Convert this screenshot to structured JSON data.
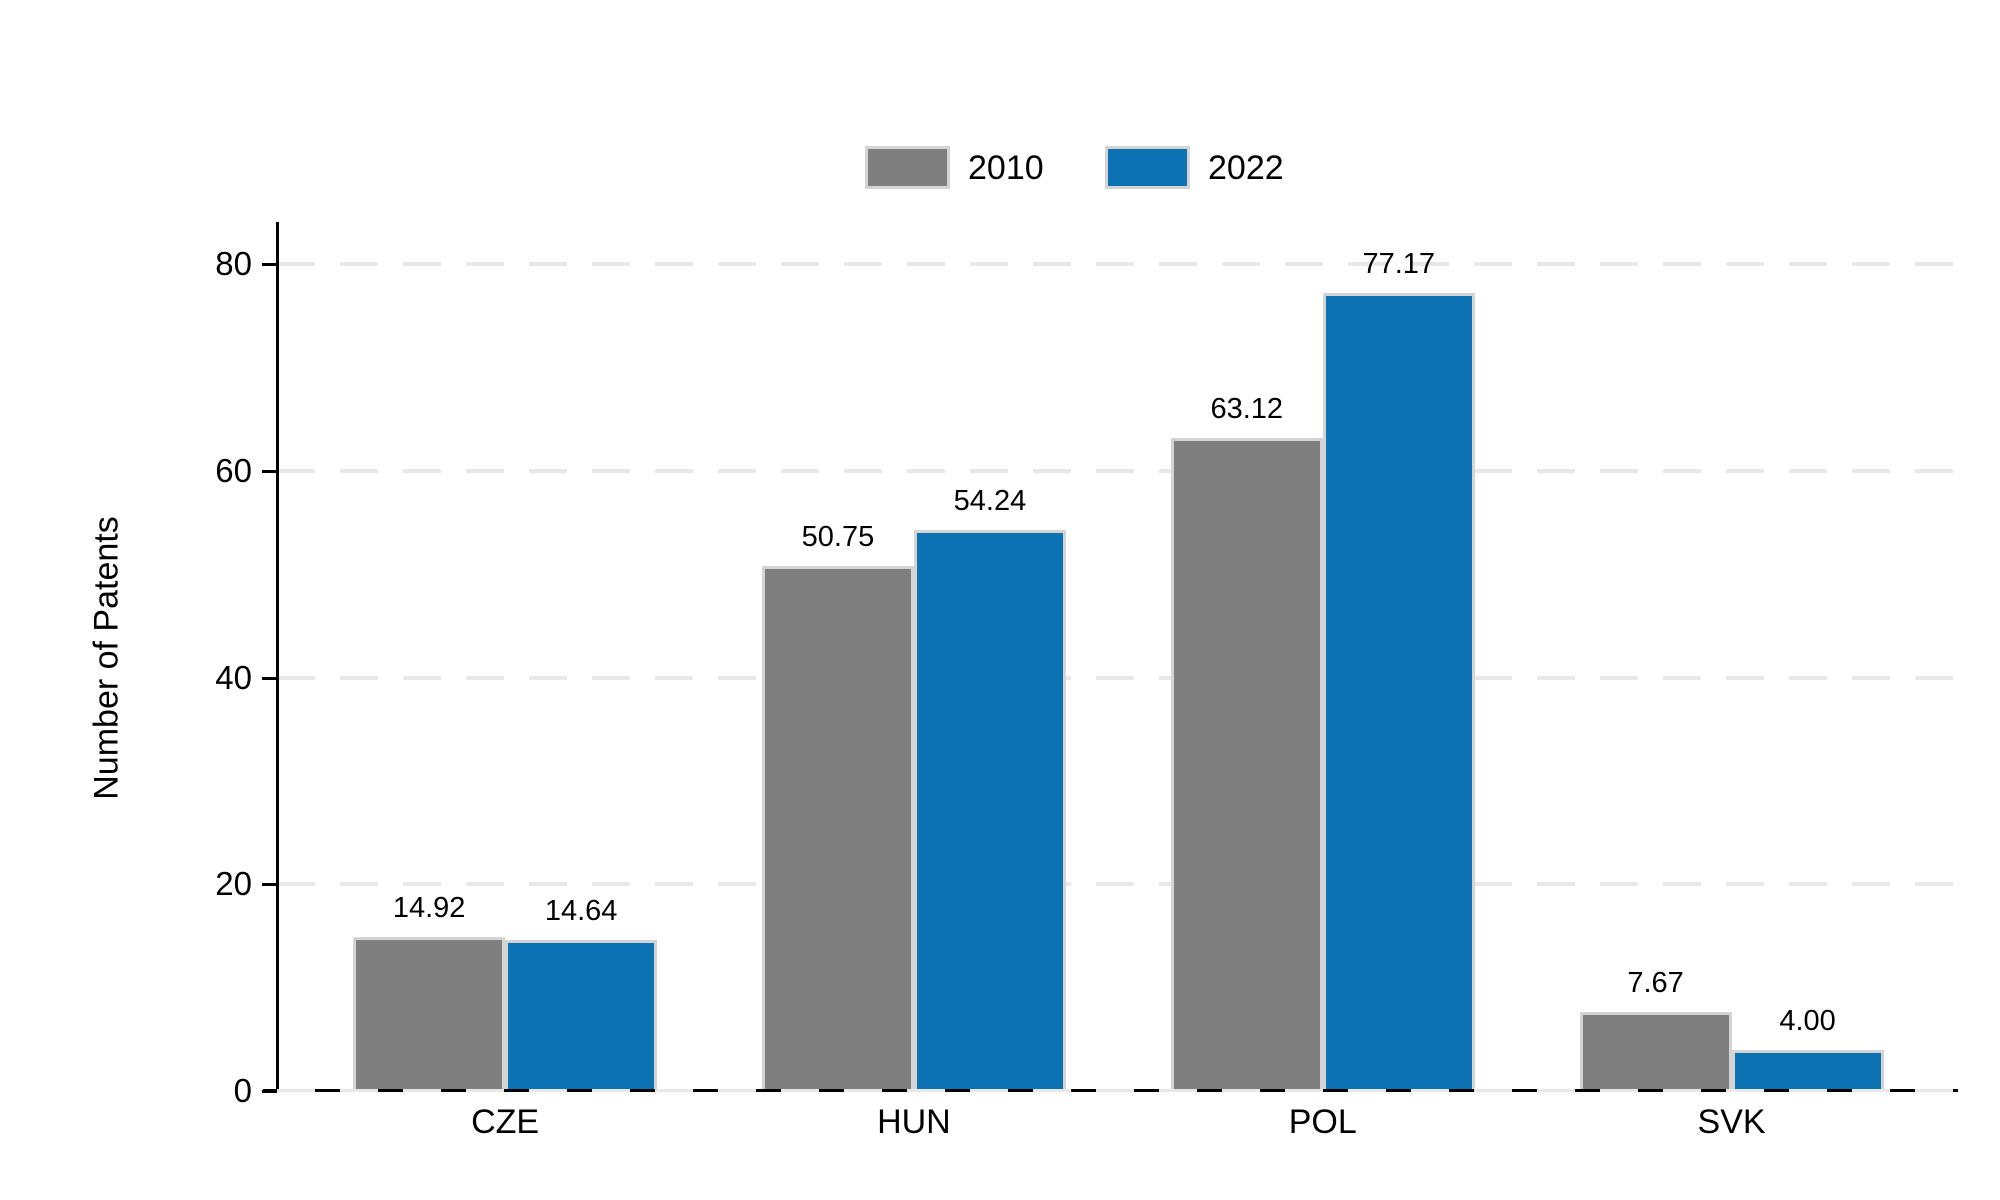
{
  "chart_data": {
    "type": "bar",
    "title": "",
    "ylabel": "Number of Patents",
    "xlabel": "",
    "categories": [
      "CZE",
      "HUN",
      "POL",
      "SVK"
    ],
    "series": [
      {
        "name": "2010",
        "color": "#7f7f7f",
        "values": [
          14.92,
          50.75,
          63.12,
          7.67
        ]
      },
      {
        "name": "2022",
        "color": "#0d72b2",
        "values": [
          14.64,
          54.24,
          77.17,
          4.0
        ]
      }
    ],
    "value_labels": [
      [
        "14.92",
        "14.64"
      ],
      [
        "50.75",
        "54.24"
      ],
      [
        "63.12",
        "77.17"
      ],
      [
        "7.67",
        "4.00"
      ]
    ],
    "ylim": [
      0,
      80
    ],
    "yticks": [
      "0",
      "20",
      "40",
      "60",
      "80"
    ],
    "grid": "horizontal-dashed",
    "legend_position": "top-center",
    "colors": {
      "axis": "#000000",
      "gridline": "#e8e8e8",
      "bar_border": "#d4d4d4",
      "text": "#000000",
      "background": "#ffffff"
    }
  }
}
